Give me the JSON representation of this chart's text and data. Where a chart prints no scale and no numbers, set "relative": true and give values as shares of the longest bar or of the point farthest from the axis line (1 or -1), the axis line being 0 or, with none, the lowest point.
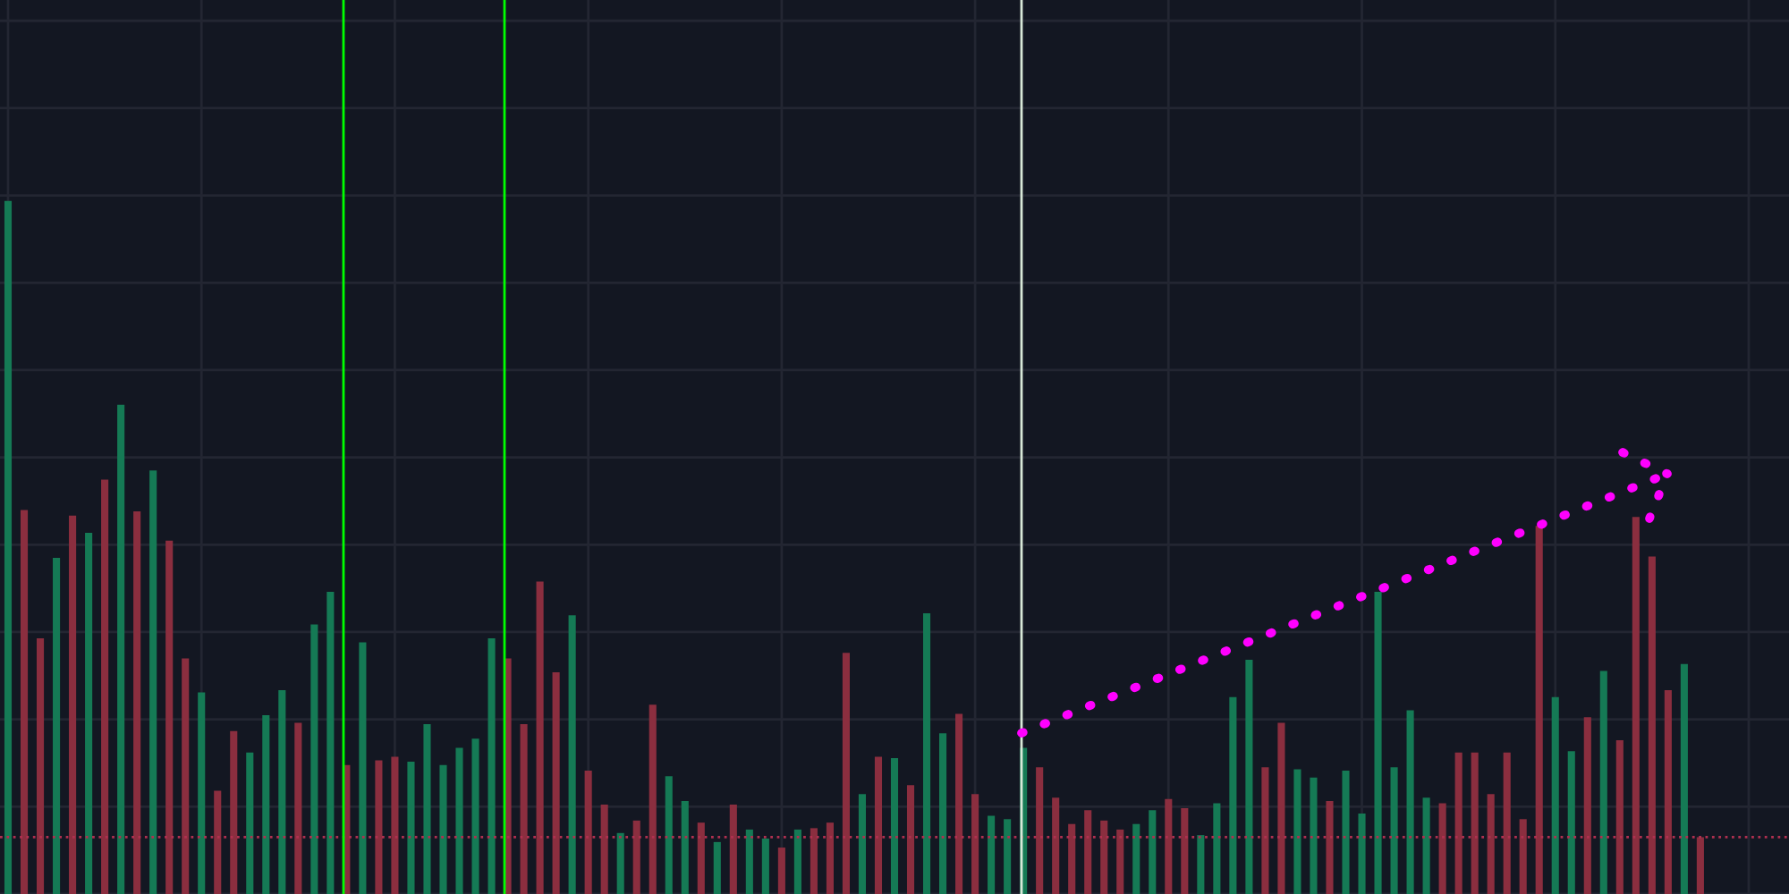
{
  "chart_data": {
    "type": "bar",
    "relative": true,
    "grid": true,
    "tick_labels": false,
    "categories": [
      null,
      null,
      null,
      null,
      null,
      null,
      null,
      null,
      null,
      null,
      null,
      null,
      null,
      null,
      null,
      null,
      null,
      null,
      null,
      null,
      null,
      null,
      null,
      null,
      null,
      null,
      null,
      null,
      null,
      null,
      null,
      null,
      null,
      null,
      null,
      null,
      null,
      null,
      null,
      null,
      null,
      null,
      null,
      null,
      null,
      null,
      null,
      null,
      null,
      null,
      null,
      null,
      null,
      null,
      null,
      null,
      null,
      null,
      null,
      null,
      null,
      null,
      null,
      null,
      null,
      null,
      null,
      null,
      null,
      null,
      null,
      null,
      null,
      null,
      null,
      null,
      null,
      null,
      null,
      null,
      null,
      null,
      null,
      null,
      null,
      null,
      null,
      null,
      null,
      null,
      null,
      null,
      null,
      null,
      null,
      null,
      null,
      null,
      null,
      null,
      null,
      null,
      null,
      null,
      null,
      null
    ],
    "values": [
      1.0,
      0.554,
      0.369,
      0.485,
      0.546,
      0.521,
      0.598,
      0.706,
      0.552,
      0.611,
      0.51,
      0.34,
      0.291,
      0.149,
      0.235,
      0.204,
      0.258,
      0.294,
      0.247,
      0.389,
      0.436,
      0.186,
      0.363,
      0.193,
      0.198,
      0.191,
      0.245,
      0.186,
      0.211,
      0.224,
      0.369,
      0.34,
      0.245,
      0.451,
      0.32,
      0.402,
      0.178,
      0.129,
      0.088,
      0.106,
      0.273,
      0.17,
      0.134,
      0.103,
      0.075,
      0.129,
      0.093,
      0.08,
      0.067,
      0.093,
      0.095,
      0.103,
      0.348,
      0.144,
      0.198,
      0.196,
      0.157,
      0.405,
      0.232,
      0.26,
      0.144,
      0.113,
      0.108,
      0.211,
      0.183,
      0.139,
      0.101,
      0.121,
      0.106,
      0.093,
      0.101,
      0.121,
      0.137,
      0.124,
      0.085,
      0.131,
      0.284,
      0.338,
      0.183,
      0.247,
      0.18,
      0.168,
      0.134,
      0.178,
      0.116,
      0.436,
      0.183,
      0.265,
      0.139,
      0.131,
      0.204,
      0.204,
      0.144,
      0.204,
      0.108,
      0.531,
      0.284,
      0.206,
      0.255,
      0.322,
      0.222,
      0.544,
      0.487,
      0.294,
      0.332,
      0.082
    ],
    "colors": [
      "#157a55",
      "#8b2e3f",
      "#8b2e3f",
      "#157a55",
      "#8b2e3f",
      "#157a55",
      "#8b2e3f",
      "#157a55",
      "#8b2e3f",
      "#157a55",
      "#8b2e3f",
      "#8b2e3f",
      "#157a55",
      "#8b2e3f",
      "#8b2e3f",
      "#157a55",
      "#157a55",
      "#157a55",
      "#8b2e3f",
      "#157a55",
      "#157a55",
      "#8b2e3f",
      "#157a55",
      "#8b2e3f",
      "#8b2e3f",
      "#157a55",
      "#157a55",
      "#157a55",
      "#157a55",
      "#157a55",
      "#157a55",
      "#8b2e3f",
      "#8b2e3f",
      "#8b2e3f",
      "#8b2e3f",
      "#157a55",
      "#8b2e3f",
      "#8b2e3f",
      "#157a55",
      "#8b2e3f",
      "#8b2e3f",
      "#157a55",
      "#157a55",
      "#8b2e3f",
      "#157a55",
      "#8b2e3f",
      "#157a55",
      "#157a55",
      "#8b2e3f",
      "#157a55",
      "#8b2e3f",
      "#8b2e3f",
      "#8b2e3f",
      "#157a55",
      "#8b2e3f",
      "#157a55",
      "#8b2e3f",
      "#157a55",
      "#157a55",
      "#8b2e3f",
      "#8b2e3f",
      "#157a55",
      "#157a55",
      "#157a55",
      "#8b2e3f",
      "#8b2e3f",
      "#8b2e3f",
      "#8b2e3f",
      "#8b2e3f",
      "#8b2e3f",
      "#157a55",
      "#157a55",
      "#8b2e3f",
      "#8b2e3f",
      "#157a55",
      "#157a55",
      "#157a55",
      "#157a55",
      "#8b2e3f",
      "#8b2e3f",
      "#157a55",
      "#157a55",
      "#8b2e3f",
      "#157a55",
      "#157a55",
      "#157a55",
      "#157a55",
      "#157a55",
      "#157a55",
      "#8b2e3f",
      "#8b2e3f",
      "#8b2e3f",
      "#8b2e3f",
      "#8b2e3f",
      "#8b2e3f",
      "#8b2e3f",
      "#157a55",
      "#157a55",
      "#8b2e3f",
      "#157a55",
      "#8b2e3f",
      "#8b2e3f",
      "#8b2e3f",
      "#8b2e3f",
      "#157a55",
      "#8b2e3f"
    ],
    "ref_lines": [
      {
        "axis": "y",
        "value": 0.082,
        "color": "#b03050",
        "line_style": "dotted"
      }
    ]
  }
}
